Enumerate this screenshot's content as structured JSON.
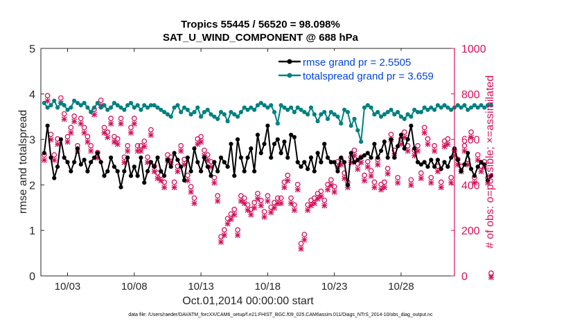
{
  "title_line1": "Tropics 55445 / 56520 = 98.098%",
  "title_line2": "SAT_U_WIND_COMPONENT @ 688 hPa",
  "footer": "data file: /Users/raeder/DAI/ATM_forcXX/CAM6_setup/f.e21.FHIST_BGC.f09_025.CAM6assim.011/Diags_NTrS_2014-10/obs_diag_output.nc",
  "colors": {
    "rmse": "#000000",
    "spread": "#008080",
    "obs": "#d6105a",
    "legend_text": "#0044dd"
  },
  "chart_data": {
    "type": "line",
    "xlabel": "Oct.01,2014 00:00:00 start",
    "ylabel_left": "rmse and totalspread",
    "ylabel_right": "# of obs: o=possible; ×=assimilated",
    "xlim": [
      1,
      32
    ],
    "ylim_left": [
      0,
      5
    ],
    "ylim_right": [
      0,
      1000
    ],
    "x_tick_values": [
      3,
      8,
      13,
      18,
      23,
      28
    ],
    "x_tick_labels": [
      "10/03",
      "10/08",
      "10/13",
      "10/18",
      "10/23",
      "10/28"
    ],
    "y_left_ticks": [
      "0",
      "1",
      "2",
      "3",
      "4",
      "5"
    ],
    "y_right_ticks": [
      "0",
      "200",
      "400",
      "600",
      "800",
      "1000"
    ],
    "legend": [
      "rmse grand pr = 2.5505",
      "totalspread grand pr = 3.659"
    ],
    "legend_position": "top-right",
    "time_step_days": 0.25,
    "series": [
      {
        "name": "rmse",
        "axis": "left",
        "start": 1.25,
        "values": [
          2.7,
          3.3,
          2.6,
          2.15,
          2.4,
          3.0,
          2.6,
          2.5,
          2.3,
          2.5,
          2.8,
          2.45,
          2.55,
          2.3,
          2.5,
          2.6,
          2.7,
          2.5,
          2.2,
          2.3,
          2.6,
          2.4,
          2.3,
          1.95,
          2.3,
          2.6,
          2.2,
          2.4,
          2.2,
          2.6,
          2.05,
          2.3,
          2.5,
          2.4,
          2.6,
          2.3,
          2.2,
          2.55,
          2.4,
          2.7,
          2.55,
          2.4,
          2.1,
          2.6,
          2.3,
          2.8,
          2.5,
          2.3,
          2.6,
          2.4,
          2.2,
          2.5,
          2.3,
          2.6,
          2.5,
          2.4,
          2.9,
          2.2,
          3.0,
          2.6,
          2.3,
          2.6,
          2.8,
          2.3,
          3.1,
          2.7,
          2.9,
          3.3,
          2.6,
          2.9,
          3.0,
          2.7,
          2.95,
          2.6,
          3.1,
          3.05,
          2.5,
          2.4,
          2.5,
          2.35,
          2.6,
          2.3,
          2.7,
          2.5,
          2.9,
          2.6,
          2.5,
          2.5,
          2.3,
          2.6,
          2.5,
          2.0,
          2.7,
          2.5,
          2.55,
          2.6,
          2.65,
          2.7,
          2.6,
          2.9,
          2.6,
          2.75,
          2.95,
          2.6,
          3.0,
          2.6,
          2.85,
          3.1,
          2.8,
          3.0,
          3.3,
          2.8,
          2.5,
          2.45,
          2.5,
          2.4,
          2.55,
          2.4,
          2.55,
          2.35,
          2.5,
          2.4,
          2.6,
          2.8,
          2.55,
          2.3,
          2.45,
          2.7,
          2.35,
          2.2,
          2.4,
          2.5,
          2.45,
          2.1,
          2.2
        ],
        "color": "#000000"
      },
      {
        "name": "totalspread",
        "axis": "left",
        "start": 1.25,
        "values": [
          3.8,
          3.7,
          3.75,
          3.85,
          3.7,
          3.8,
          3.75,
          3.65,
          3.7,
          3.85,
          3.8,
          3.75,
          3.8,
          3.7,
          3.6,
          3.7,
          3.8,
          3.7,
          3.75,
          3.65,
          3.7,
          3.8,
          3.75,
          3.7,
          3.65,
          3.75,
          3.8,
          3.7,
          3.75,
          3.65,
          3.75,
          3.7,
          3.75,
          3.75,
          3.7,
          3.65,
          3.6,
          3.55,
          3.5,
          3.7,
          3.75,
          3.6,
          3.7,
          3.65,
          3.55,
          3.6,
          3.7,
          3.5,
          3.6,
          3.65,
          3.55,
          3.5,
          3.45,
          3.6,
          3.55,
          3.4,
          3.6,
          3.55,
          3.5,
          3.6,
          3.7,
          3.65,
          3.7,
          3.65,
          3.75,
          3.8,
          3.75,
          3.7,
          3.75,
          3.6,
          3.35,
          3.75,
          3.7,
          3.65,
          3.7,
          3.6,
          3.7,
          3.65,
          3.6,
          3.55,
          3.7,
          3.55,
          3.4,
          3.55,
          3.6,
          3.45,
          3.6,
          3.55,
          3.5,
          3.35,
          3.65,
          3.6,
          3.3,
          3.45,
          3.2,
          2.95,
          3.7,
          3.75,
          3.7,
          3.55,
          3.6,
          3.5,
          3.55,
          3.6,
          3.65,
          3.55,
          3.6,
          3.5,
          3.45,
          3.55,
          3.5,
          3.65,
          3.6,
          3.6,
          3.7,
          3.65,
          3.7,
          3.65,
          3.75,
          3.7,
          3.75,
          3.7,
          3.65,
          3.7,
          3.75,
          3.7,
          3.75,
          3.65,
          3.7,
          3.75,
          3.7,
          3.75,
          3.7,
          3.75,
          3.75
        ],
        "color": "#008080"
      },
      {
        "name": "obs possible",
        "axis": "right",
        "start": 1.25,
        "values": [
          520,
          780,
          610,
          520,
          590,
          770,
          700,
          600,
          640,
          690,
          560,
          680,
          640,
          600,
          560,
          720,
          530,
          760,
          640,
          620,
          680,
          600,
          590,
          680,
          510,
          560,
          640,
          680,
          560,
          560,
          580,
          510,
          630,
          470,
          440,
          430,
          400,
          520,
          510,
          400,
          470,
          560,
          500,
          430,
          380,
          330,
          590,
          600,
          540,
          520,
          490,
          420,
          340,
          160,
          190,
          240,
          260,
          280,
          190,
          340,
          330,
          300,
          280,
          310,
          350,
          320,
          270,
          340,
          290,
          310,
          330,
          330,
          400,
          430,
          330,
          300,
          390,
          130,
          170,
          300,
          320,
          330,
          350,
          360,
          320,
          390,
          410,
          380,
          490,
          500,
          440,
          400,
          510,
          540,
          480,
          510,
          430,
          490,
          450,
          400,
          500,
          390,
          400,
          460,
          610,
          540,
          420,
          590,
          620,
          560,
          410,
          540,
          560,
          440,
          640,
          590,
          420,
          560,
          470,
          400,
          580,
          590,
          420,
          540,
          500,
          470,
          560,
          500,
          620,
          420,
          520,
          470,
          490,
          420,
          0
        ],
        "color": "#d6105a"
      },
      {
        "name": "obs assimilated",
        "axis": "right",
        "start": 1.25,
        "values": [
          515,
          775,
          605,
          515,
          585,
          765,
          695,
          595,
          635,
          685,
          555,
          675,
          635,
          595,
          555,
          715,
          525,
          755,
          635,
          615,
          675,
          595,
          585,
          675,
          505,
          555,
          635,
          675,
          555,
          555,
          575,
          505,
          625,
          465,
          435,
          425,
          395,
          515,
          505,
          395,
          465,
          555,
          495,
          425,
          375,
          325,
          585,
          595,
          535,
          515,
          485,
          415,
          335,
          155,
          185,
          235,
          255,
          275,
          185,
          335,
          325,
          295,
          275,
          305,
          345,
          315,
          265,
          335,
          285,
          305,
          325,
          325,
          395,
          425,
          325,
          295,
          385,
          125,
          165,
          295,
          315,
          325,
          345,
          355,
          315,
          385,
          405,
          375,
          485,
          495,
          435,
          395,
          505,
          535,
          475,
          505,
          425,
          485,
          445,
          395,
          495,
          385,
          395,
          455,
          605,
          535,
          415,
          585,
          615,
          555,
          405,
          535,
          555,
          435,
          635,
          585,
          415,
          555,
          465,
          395,
          575,
          585,
          415,
          535,
          495,
          465,
          555,
          495,
          615,
          415,
          515,
          465,
          485,
          415,
          0
        ],
        "color": "#d6105a"
      }
    ]
  }
}
